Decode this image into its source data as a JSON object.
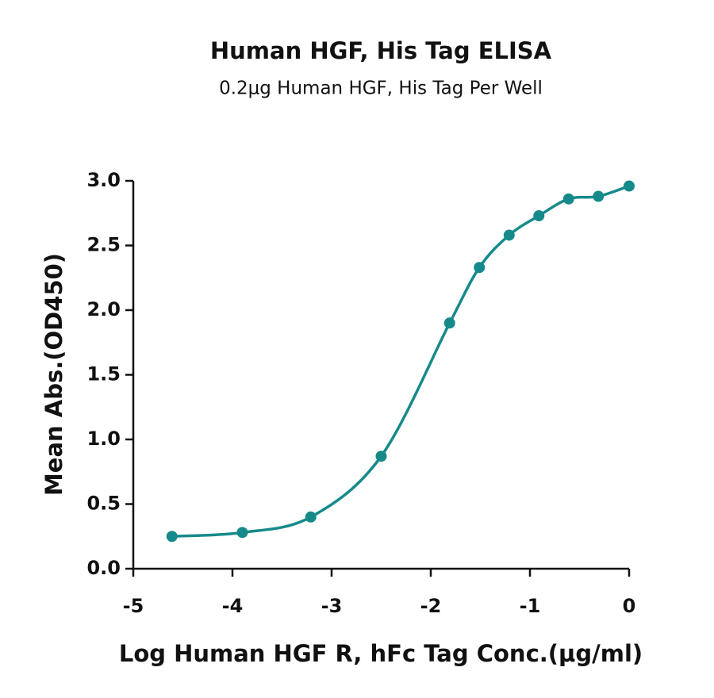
{
  "chart_data": {
    "type": "line",
    "smooth": true,
    "markers": true,
    "title": "Human HGF, His Tag ELISA",
    "subtitle": "0.2μg Human HGF, His Tag Per Well",
    "x_label": "Log Human HGF R, hFc Tag Conc.(μg/ml)",
    "y_label": "Mean Abs.(OD450)",
    "x": [
      -4.61,
      -3.9,
      -3.21,
      -2.5,
      -1.81,
      -1.51,
      -1.21,
      -0.91,
      -0.61,
      -0.31,
      0
    ],
    "series": [
      {
        "color": "#168a8a",
        "values": [
          0.25,
          0.28,
          0.4,
          0.87,
          1.9,
          2.33,
          2.58,
          2.73,
          2.86,
          2.88,
          2.96
        ]
      }
    ],
    "xlim": [
      -5,
      0
    ],
    "xticks": [
      -5,
      -4,
      -3,
      -2,
      -1,
      0
    ],
    "ylim": [
      0,
      3
    ],
    "yticks": [
      {
        "value": 0,
        "label": "0.0"
      },
      0.5,
      {
        "value": 1,
        "label": "1.0"
      },
      1.5,
      {
        "value": 2,
        "label": "2.0"
      },
      2.5,
      {
        "value": 3,
        "label": "3.0"
      }
    ],
    "grid": false
  }
}
